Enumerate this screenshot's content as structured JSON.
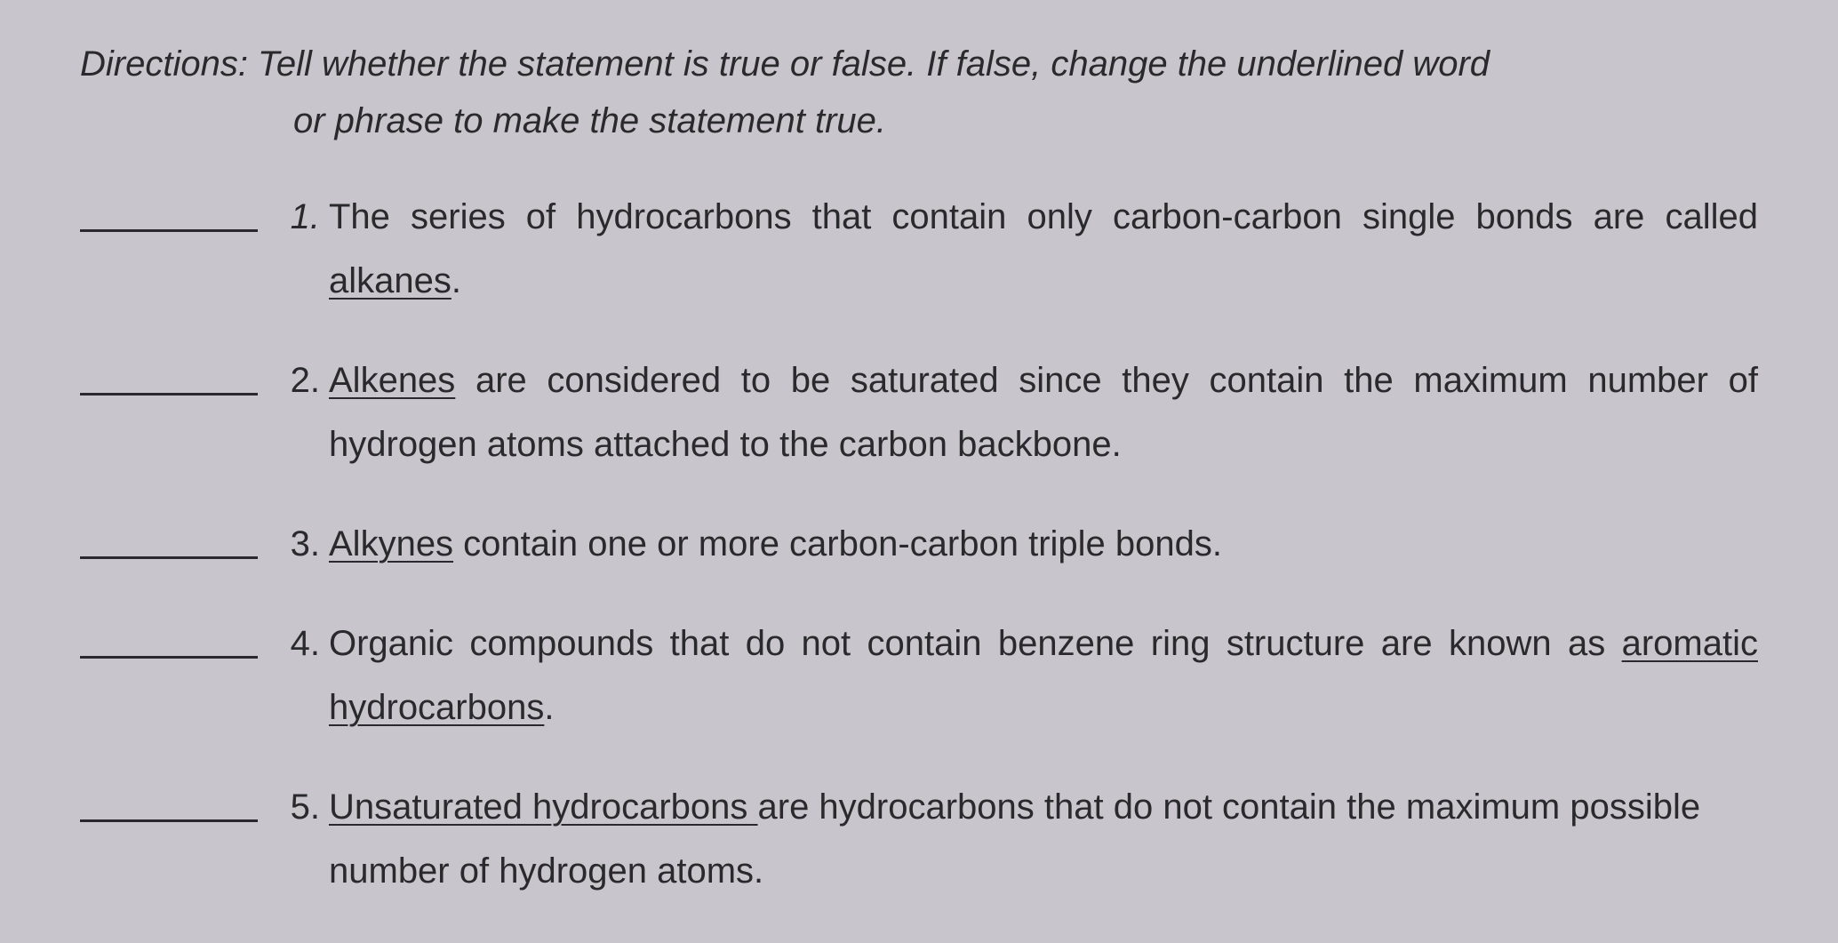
{
  "background_color": "#c8c6cc",
  "text_color": "#2a2a2e",
  "font_family": "Arial",
  "font_size_pt": 40,
  "line_height": 1.8,
  "directions": {
    "line1": "Directions: Tell whether the statement is true or false. If false, change the underlined word",
    "line2": "or phrase to make the statement true."
  },
  "questions": [
    {
      "number": "1.",
      "pre": "The series of hydrocarbons that contain only carbon-carbon single bonds are called ",
      "underlined": "alkanes",
      "post": "."
    },
    {
      "number": "2.",
      "pre": "",
      "underlined": "Alkenes",
      "post": " are considered to be saturated since they contain the maximum number of hydrogen atoms attached to the carbon backbone."
    },
    {
      "number": "3.",
      "pre": "",
      "underlined": "Alkynes",
      "post": " contain one or more carbon-carbon triple bonds."
    },
    {
      "number": "4.",
      "pre": "Organic compounds that do not contain benzene ring structure are known as ",
      "underlined": "aromatic hydrocarbons",
      "post": "."
    },
    {
      "number": "5.",
      "pre": "",
      "underlined": "Unsaturated hydrocarbons ",
      "post": "are hydrocarbons that do not contain the maximum possible number of hydrogen atoms."
    }
  ]
}
